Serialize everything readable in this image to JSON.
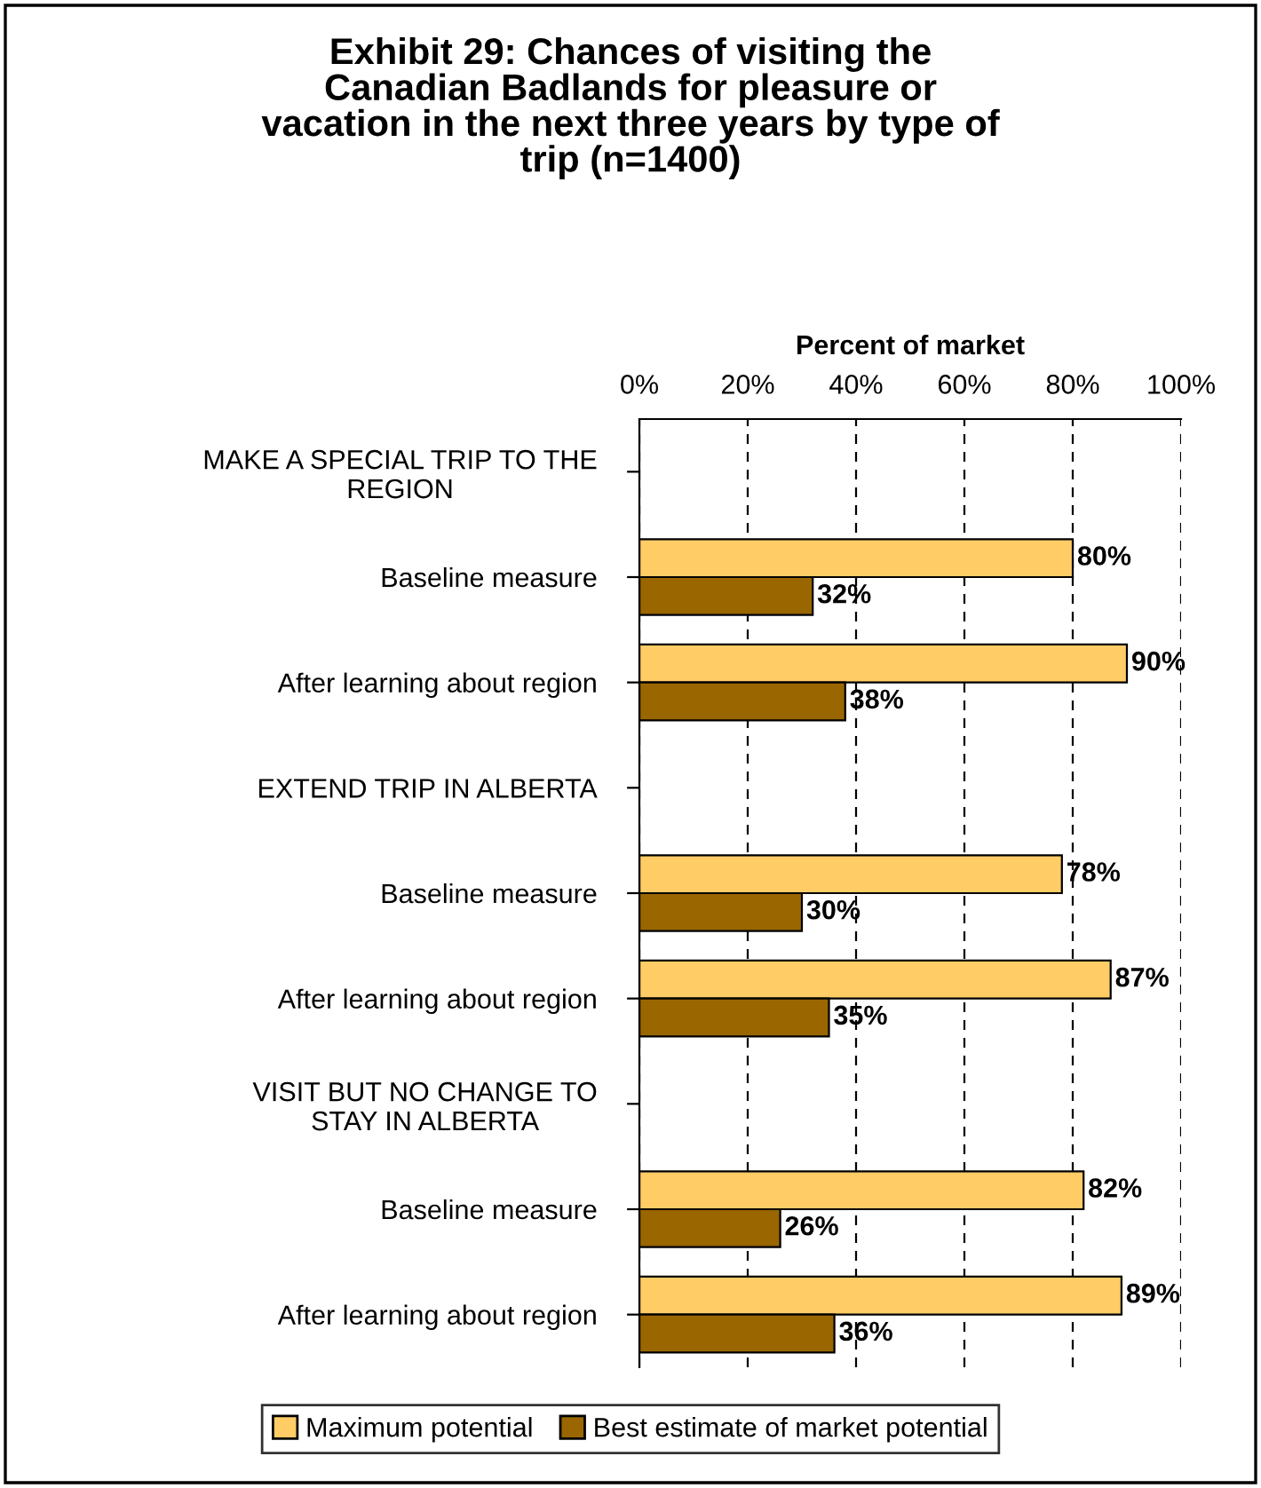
{
  "chart_data": {
    "type": "bar",
    "orientation": "horizontal",
    "title": "Exhibit 29: Chances of visiting the\nCanadian Badlands for pleasure or\nvacation in the next three years by type of\ntrip (n=1400)",
    "xlabel": "Percent of market",
    "categories": [
      "MAKE A SPECIAL TRIP TO THE\nREGION",
      "Baseline measure",
      "After learning about region",
      "EXTEND TRIP IN ALBERTA",
      "Baseline measure",
      "After learning about region",
      "VISIT BUT NO CHANGE TO\nSTAY IN ALBERTA",
      "Baseline measure",
      "After learning about region"
    ],
    "series": [
      {
        "name": "Maximum potential",
        "color": "#ffcc66",
        "values": [
          null,
          80,
          90,
          null,
          78,
          87,
          null,
          82,
          89
        ],
        "value_labels": [
          null,
          "80%",
          "90%",
          null,
          "78%",
          "87%",
          null,
          "82%",
          "89%"
        ]
      },
      {
        "name": "Best estimate of market potential",
        "color": "#996600",
        "values": [
          null,
          32,
          38,
          null,
          30,
          35,
          null,
          26,
          36
        ],
        "value_labels": [
          null,
          "32%",
          "38%",
          null,
          "30%",
          "35%",
          null,
          "26%",
          "36%"
        ]
      }
    ],
    "xlim": [
      0,
      100
    ],
    "xticks": [
      {
        "value": 0,
        "label": "0%"
      },
      {
        "value": 20,
        "label": "20%"
      },
      {
        "value": 40,
        "label": "40%"
      },
      {
        "value": 60,
        "label": "60%"
      },
      {
        "value": 80,
        "label": "80%"
      },
      {
        "value": 100,
        "label": "100%"
      }
    ],
    "grid": "x",
    "legend": "bottom"
  }
}
